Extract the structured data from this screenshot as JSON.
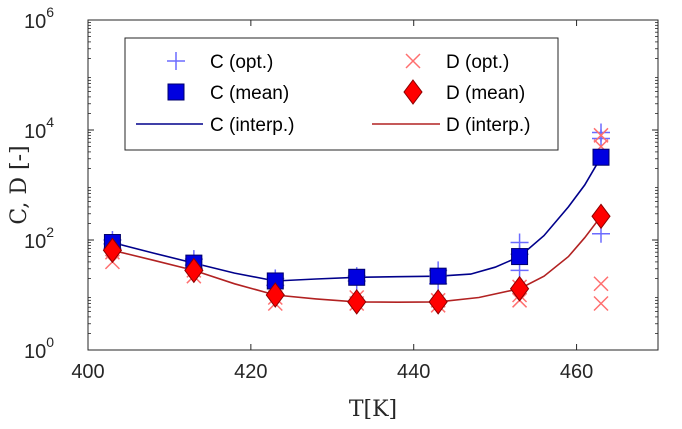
{
  "chart_data": {
    "type": "scatter",
    "xlabel": "T[K]",
    "ylabel": "C, D [-]",
    "xlim": [
      400,
      470
    ],
    "ylim": [
      1,
      1000000
    ],
    "yscale": "log",
    "xticks": [
      "400",
      "420",
      "440",
      "460"
    ],
    "xtick_values": [
      400,
      420,
      440,
      460
    ],
    "yticks": [
      {
        "base": "10",
        "exp": "0",
        "value": 1
      },
      {
        "base": "10",
        "exp": "2",
        "value": 100
      },
      {
        "base": "10",
        "exp": "4",
        "value": 10000
      },
      {
        "base": "10",
        "exp": "6",
        "value": 1000000
      }
    ],
    "grid": false,
    "legend_position": "top",
    "legend": {
      "c_opt": "C (opt.)",
      "d_opt": "D (opt.)",
      "c_mean": "C (mean)",
      "d_mean": "D (mean)",
      "c_interp": "C (interp.)",
      "d_interp": "D (interp.)"
    },
    "colors": {
      "c_opt": "#6b6bff",
      "d_opt": "#ff6f6f",
      "c_mean": "#0000e0",
      "d_mean": "#ff0000",
      "c_interp": "#00008b",
      "d_interp": "#b22222"
    },
    "series": [
      {
        "key": "c_opt",
        "marker": "plus",
        "points": [
          [
            403,
            100
          ],
          [
            403,
            85
          ],
          [
            403,
            70
          ],
          [
            413,
            45
          ],
          [
            413,
            35
          ],
          [
            413,
            30
          ],
          [
            423,
            20
          ],
          [
            423,
            15
          ],
          [
            433,
            22
          ],
          [
            433,
            18
          ],
          [
            443,
            28
          ],
          [
            443,
            22
          ],
          [
            443,
            16
          ],
          [
            453,
            90
          ],
          [
            453,
            55
          ],
          [
            453,
            28
          ],
          [
            463,
            9000
          ],
          [
            463,
            7000
          ],
          [
            463,
            130
          ]
        ]
      },
      {
        "key": "d_opt",
        "marker": "x",
        "points": [
          [
            403,
            80
          ],
          [
            403,
            60
          ],
          [
            403,
            40
          ],
          [
            413,
            35
          ],
          [
            413,
            28
          ],
          [
            413,
            22
          ],
          [
            423,
            13
          ],
          [
            423,
            9
          ],
          [
            423,
            7
          ],
          [
            433,
            9
          ],
          [
            433,
            7
          ],
          [
            443,
            8
          ],
          [
            443,
            6.5
          ],
          [
            453,
            14
          ],
          [
            453,
            10
          ],
          [
            453,
            8
          ],
          [
            463,
            8000
          ],
          [
            463,
            5000
          ],
          [
            463,
            16
          ],
          [
            463,
            7
          ]
        ]
      },
      {
        "key": "c_mean",
        "marker": "square",
        "points": [
          [
            403,
            90
          ],
          [
            413,
            38
          ],
          [
            423,
            18
          ],
          [
            433,
            21
          ],
          [
            443,
            22
          ],
          [
            453,
            50
          ],
          [
            463,
            3200
          ]
        ]
      },
      {
        "key": "d_mean",
        "marker": "diamond",
        "points": [
          [
            403,
            65
          ],
          [
            413,
            28
          ],
          [
            423,
            10
          ],
          [
            433,
            7.5
          ],
          [
            443,
            7.5
          ],
          [
            453,
            13
          ],
          [
            463,
            270
          ]
        ]
      },
      {
        "key": "c_interp",
        "marker": "line",
        "points": [
          [
            403,
            90
          ],
          [
            408,
            58
          ],
          [
            413,
            38
          ],
          [
            418,
            25
          ],
          [
            423,
            18
          ],
          [
            428,
            19.5
          ],
          [
            433,
            21
          ],
          [
            438,
            21.5
          ],
          [
            443,
            22
          ],
          [
            447,
            24
          ],
          [
            450,
            32
          ],
          [
            453,
            50
          ],
          [
            456,
            120
          ],
          [
            459,
            400
          ],
          [
            461,
            1000
          ],
          [
            463,
            3200
          ]
        ]
      },
      {
        "key": "d_interp",
        "marker": "line",
        "points": [
          [
            403,
            65
          ],
          [
            408,
            43
          ],
          [
            413,
            28
          ],
          [
            418,
            16
          ],
          [
            423,
            10
          ],
          [
            428,
            8.5
          ],
          [
            433,
            7.5
          ],
          [
            438,
            7.4
          ],
          [
            443,
            7.5
          ],
          [
            448,
            9
          ],
          [
            453,
            13
          ],
          [
            456,
            22
          ],
          [
            459,
            50
          ],
          [
            461,
            110
          ],
          [
            463,
            270
          ]
        ]
      }
    ]
  }
}
